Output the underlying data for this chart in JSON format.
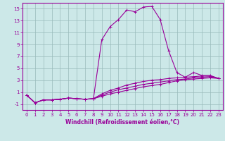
{
  "xlabel": "Windchill (Refroidissement éolien,°C)",
  "x": [
    0,
    1,
    2,
    3,
    4,
    5,
    6,
    7,
    8,
    9,
    10,
    11,
    12,
    13,
    14,
    15,
    16,
    17,
    18,
    19,
    20,
    21,
    22,
    23
  ],
  "line1": [
    0.5,
    -0.8,
    -0.3,
    -0.3,
    -0.2,
    0.0,
    -0.1,
    -0.2,
    -0.1,
    9.8,
    12.0,
    13.2,
    14.8,
    14.5,
    15.3,
    15.4,
    13.2,
    8.0,
    4.3,
    3.5,
    4.3,
    3.8,
    3.8,
    3.3
  ],
  "line2": [
    0.5,
    -0.8,
    -0.3,
    -0.3,
    -0.2,
    0.0,
    -0.1,
    -0.2,
    -0.1,
    0.3,
    0.7,
    1.0,
    1.3,
    1.6,
    1.9,
    2.1,
    2.3,
    2.6,
    2.9,
    3.1,
    3.2,
    3.3,
    3.4,
    3.3
  ],
  "line3": [
    0.5,
    -0.8,
    -0.3,
    -0.3,
    -0.2,
    0.0,
    -0.1,
    -0.2,
    -0.1,
    0.5,
    1.0,
    1.4,
    1.7,
    2.0,
    2.3,
    2.5,
    2.7,
    2.9,
    3.1,
    3.2,
    3.4,
    3.5,
    3.6,
    3.3
  ],
  "line4": [
    0.5,
    -0.8,
    -0.3,
    -0.3,
    -0.2,
    0.0,
    -0.1,
    -0.2,
    -0.1,
    0.7,
    1.3,
    1.7,
    2.2,
    2.5,
    2.8,
    3.0,
    3.1,
    3.3,
    3.4,
    3.5,
    3.6,
    3.7,
    3.7,
    3.3
  ],
  "line_color": "#990099",
  "bg_color": "#cce8e8",
  "grid_color": "#99bbbb",
  "ylim": [
    -2,
    16
  ],
  "yticks": [
    -1,
    1,
    3,
    5,
    7,
    9,
    11,
    13,
    15
  ],
  "xticks": [
    0,
    1,
    2,
    3,
    4,
    5,
    6,
    7,
    8,
    9,
    10,
    11,
    12,
    13,
    14,
    15,
    16,
    17,
    18,
    19,
    20,
    21,
    22,
    23
  ],
  "marker": "+",
  "markersize": 3,
  "linewidth": 0.8,
  "tick_fontsize": 5.0,
  "xlabel_fontsize": 5.5
}
